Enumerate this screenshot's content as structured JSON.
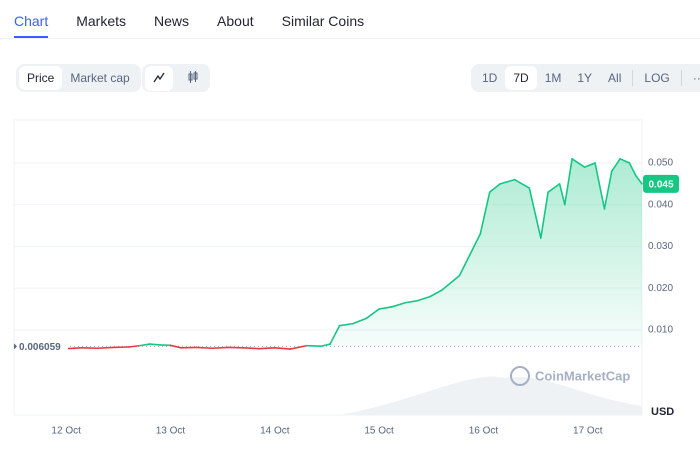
{
  "tabs": [
    "Chart",
    "Markets",
    "News",
    "About",
    "Similar Coins"
  ],
  "view_toggle": [
    "Price",
    "Market cap"
  ],
  "ranges": [
    "1D",
    "7D",
    "1M",
    "1Y",
    "All",
    "LOG",
    "···"
  ],
  "watermark": "CoinMarketCap",
  "currency": "USD",
  "chart_data": {
    "type": "line",
    "x": [
      0,
      0.15,
      0.3,
      0.45,
      0.6,
      0.7,
      0.8,
      0.9,
      1.0,
      1.1,
      1.25,
      1.4,
      1.55,
      1.7,
      1.85,
      2.0,
      2.15,
      2.3,
      2.45,
      2.53,
      2.62,
      2.75,
      2.88,
      3.0,
      3.12,
      3.25,
      3.37,
      3.49,
      3.6,
      3.77,
      3.87,
      3.97,
      4.06,
      4.16,
      4.3,
      4.44,
      4.55,
      4.62,
      4.73,
      4.78,
      4.85,
      4.97,
      5.07,
      5.16,
      5.23,
      5.31,
      5.4,
      5.46,
      5.52
    ],
    "series": [
      {
        "name": "Price",
        "color": "#16c784",
        "below_color": "#ea3943",
        "values": [
          0.0055,
          0.0057,
          0.0056,
          0.0058,
          0.0059,
          0.0062,
          0.0066,
          0.0064,
          0.0063,
          0.0057,
          0.0058,
          0.0056,
          0.0058,
          0.0057,
          0.0055,
          0.0057,
          0.0054,
          0.0062,
          0.0061,
          0.0066,
          0.011,
          0.0115,
          0.0128,
          0.015,
          0.0155,
          0.0165,
          0.017,
          0.018,
          0.0195,
          0.023,
          0.028,
          0.033,
          0.043,
          0.045,
          0.046,
          0.044,
          0.032,
          0.043,
          0.045,
          0.04,
          0.051,
          0.049,
          0.05,
          0.039,
          0.048,
          0.051,
          0.05,
          0.047,
          0.045
        ]
      }
    ],
    "baseline": 0.006059,
    "current_price": 0.045,
    "xlim": [
      -0.5,
      5.52
    ],
    "xticks": [
      {
        "value": 0,
        "label": "12 Oct"
      },
      {
        "value": 1,
        "label": "13 Oct"
      },
      {
        "value": 2,
        "label": "14 Oct"
      },
      {
        "value": 3,
        "label": "15 Oct"
      },
      {
        "value": 4,
        "label": "16 Oct"
      },
      {
        "value": 5,
        "label": "17 Oct"
      }
    ],
    "ylim": [
      -0.0104,
      0.0603
    ],
    "yticks": [
      {
        "value": 0.01,
        "label": "0.010"
      },
      {
        "value": 0.02,
        "label": "0.020"
      },
      {
        "value": 0.03,
        "label": "0.030"
      },
      {
        "value": 0.04,
        "label": "0.040"
      },
      {
        "value": 0.05,
        "label": "0.050"
      }
    ],
    "grid": true
  }
}
